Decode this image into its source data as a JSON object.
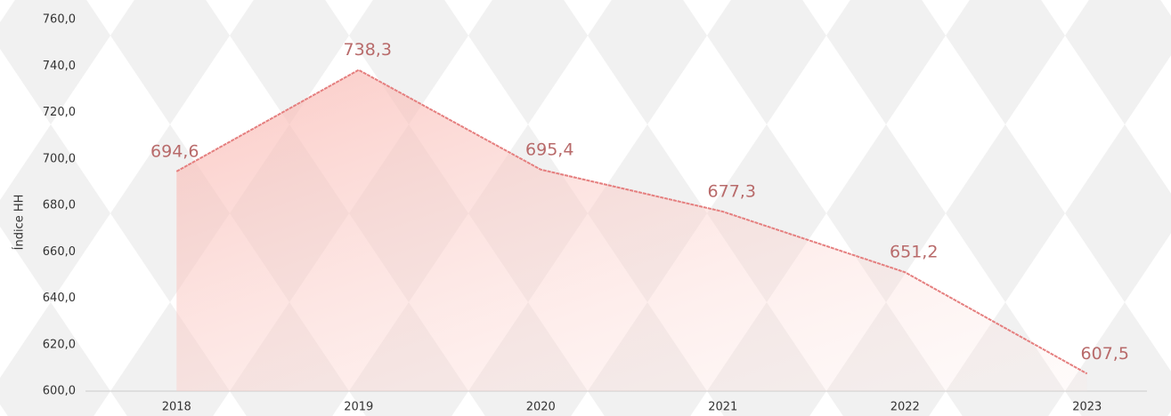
{
  "chart_data": {
    "type": "area",
    "y_label": "Índice HH",
    "categories": [
      "2018",
      "2019",
      "2020",
      "2021",
      "2022",
      "2023"
    ],
    "series": [
      {
        "color": "#e57f7f",
        "values": [
          694.6,
          738.3,
          695.4,
          677.3,
          651.2,
          607.5
        ],
        "value_labels": [
          "694,6",
          "738,3",
          "695,4",
          "677,3",
          "651,2",
          "607,5"
        ]
      }
    ],
    "ylim": [
      600,
      760
    ],
    "yticks": [
      {
        "value": 600,
        "label": "600,0"
      },
      {
        "value": 620,
        "label": "620,0"
      },
      {
        "value": 640,
        "label": "640,0"
      },
      {
        "value": 660,
        "label": "660,0"
      },
      {
        "value": 680,
        "label": "680,0"
      },
      {
        "value": 700,
        "label": "700,0"
      },
      {
        "value": 720,
        "label": "720,0"
      },
      {
        "value": 740,
        "label": "740,0"
      },
      {
        "value": 760,
        "label": "760,0"
      }
    ],
    "grid": false
  }
}
